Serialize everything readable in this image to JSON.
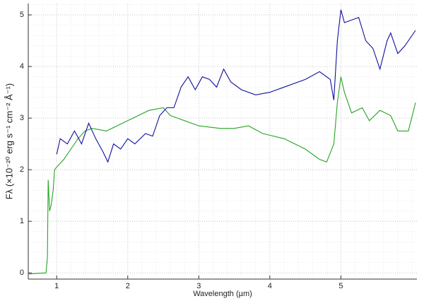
{
  "chart_data": {
    "type": "line",
    "xlabel": "Wavelength (µm)",
    "ylabel": "Fλ (×10⁻²⁰ erg s⁻¹ cm⁻² Å⁻¹)",
    "xlim": [
      0.6,
      6.07
    ],
    "ylim": [
      -0.12,
      5.22
    ],
    "xticks": [
      1,
      2,
      3,
      4,
      5
    ],
    "yticks": [
      0,
      1,
      2,
      3,
      4,
      5
    ],
    "grid": true,
    "minor_grid": true,
    "series": [
      {
        "color": "#27a327",
        "x": [
          0.6,
          0.85,
          0.87,
          0.88,
          0.9,
          0.92,
          0.95,
          0.97,
          1.0,
          1.1,
          1.2,
          1.3,
          1.4,
          1.5,
          1.7,
          2.0,
          2.3,
          2.5,
          2.6,
          2.8,
          3.0,
          3.3,
          3.5,
          3.7,
          3.9,
          4.2,
          4.5,
          4.7,
          4.8,
          4.9,
          4.95,
          5.0,
          5.05,
          5.15,
          5.3,
          5.4,
          5.55,
          5.7,
          5.8,
          5.95,
          6.05
        ],
        "values": [
          -0.02,
          0.0,
          0.3,
          1.8,
          1.2,
          1.3,
          1.6,
          2.0,
          2.05,
          2.2,
          2.4,
          2.6,
          2.75,
          2.8,
          2.75,
          2.95,
          3.15,
          3.2,
          3.05,
          2.95,
          2.85,
          2.8,
          2.8,
          2.85,
          2.7,
          2.6,
          2.4,
          2.2,
          2.15,
          2.5,
          3.3,
          3.8,
          3.5,
          3.1,
          3.2,
          2.95,
          3.15,
          3.05,
          2.75,
          2.75,
          3.3
        ]
      },
      {
        "color": "#10109e",
        "x": [
          1.0,
          1.05,
          1.15,
          1.25,
          1.35,
          1.45,
          1.55,
          1.65,
          1.72,
          1.8,
          1.9,
          2.0,
          2.1,
          2.25,
          2.35,
          2.45,
          2.55,
          2.65,
          2.75,
          2.85,
          2.95,
          3.05,
          3.15,
          3.25,
          3.35,
          3.45,
          3.6,
          3.8,
          4.0,
          4.2,
          4.5,
          4.7,
          4.85,
          4.9,
          4.95,
          5.0,
          5.05,
          5.15,
          5.25,
          5.35,
          5.45,
          5.55,
          5.65,
          5.7,
          5.8,
          5.9,
          6.05
        ],
        "values": [
          2.3,
          2.6,
          2.5,
          2.75,
          2.5,
          2.9,
          2.6,
          2.35,
          2.15,
          2.5,
          2.4,
          2.6,
          2.5,
          2.7,
          2.65,
          3.05,
          3.2,
          3.2,
          3.6,
          3.8,
          3.55,
          3.8,
          3.75,
          3.6,
          3.95,
          3.7,
          3.55,
          3.45,
          3.5,
          3.6,
          3.75,
          3.9,
          3.75,
          3.35,
          4.5,
          5.1,
          4.85,
          4.9,
          4.95,
          4.5,
          4.35,
          3.95,
          4.5,
          4.65,
          4.25,
          4.4,
          4.7
        ]
      }
    ]
  }
}
